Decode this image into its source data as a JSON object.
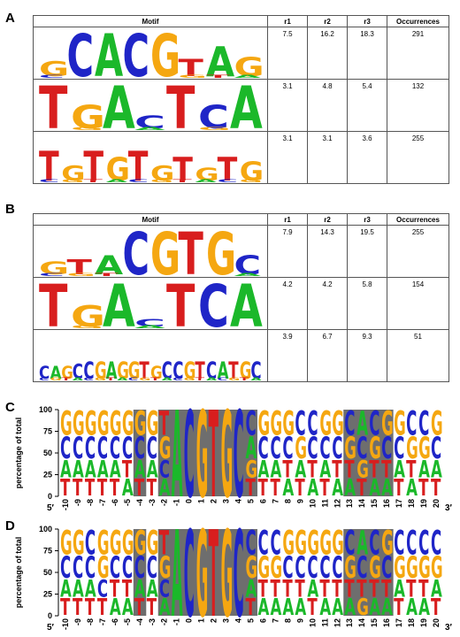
{
  "colors": {
    "A": "#1bb82a",
    "C": "#1f25c7",
    "G": "#f5a711",
    "T": "#d81e1e",
    "box": "#6e6e6e"
  },
  "panels": [
    {
      "label": "A"
    },
    {
      "label": "B"
    },
    {
      "label": "C"
    },
    {
      "label": "D"
    }
  ],
  "table_headers": [
    "Motif",
    "r1",
    "r2",
    "r3",
    "Occurrences"
  ],
  "tableA": {
    "rows": [
      {
        "r1": "7.5",
        "r2": "16.2",
        "r3": "18.3",
        "occ": "291",
        "logo": [
          [
            "G",
            0.35
          ],
          [
            "C",
            1
          ],
          [
            "A",
            1
          ],
          [
            "C",
            1
          ],
          [
            "G",
            1
          ],
          [
            "T",
            0.4
          ],
          [
            "A",
            0.7
          ],
          [
            "G",
            0.45
          ]
        ]
      },
      {
        "r1": "3.1",
        "r2": "4.8",
        "r3": "5.4",
        "occ": "132",
        "logo": [
          [
            "T",
            1
          ],
          [
            "G",
            0.55
          ],
          [
            "A",
            1
          ],
          [
            "C",
            0.3
          ],
          [
            "T",
            1
          ],
          [
            "C",
            0.55
          ],
          [
            "A",
            1
          ]
        ]
      },
      {
        "r1": "3.1",
        "r2": "3.1",
        "r3": "3.6",
        "occ": "255",
        "logo": [
          [
            "T",
            0.7
          ],
          [
            "G",
            0.35
          ],
          [
            "T",
            0.7
          ],
          [
            "G",
            0.55
          ],
          [
            "T",
            0.7
          ],
          [
            "G",
            0.35
          ],
          [
            "T",
            0.55
          ],
          [
            "G",
            0.3
          ],
          [
            "T",
            0.55
          ],
          [
            "G",
            0.45
          ]
        ]
      }
    ]
  },
  "tableB": {
    "rows": [
      {
        "r1": "7.9",
        "r2": "14.3",
        "r3": "19.5",
        "occ": "255",
        "logo": [
          [
            "G",
            0.3
          ],
          [
            "T",
            0.35
          ],
          [
            "A",
            0.45
          ],
          [
            "C",
            1
          ],
          [
            "G",
            1
          ],
          [
            "T",
            1
          ],
          [
            "G",
            1
          ],
          [
            "C",
            0.45
          ]
        ]
      },
      {
        "r1": "4.2",
        "r2": "4.2",
        "r3": "5.8",
        "occ": "154",
        "logo": [
          [
            "T",
            1
          ],
          [
            "G",
            0.5
          ],
          [
            "A",
            1
          ],
          [
            "C",
            0.18
          ],
          [
            "T",
            1
          ],
          [
            "C",
            1
          ],
          [
            "A",
            1
          ]
        ]
      },
      {
        "r1": "3.9",
        "r2": "6.7",
        "r3": "9.3",
        "occ": "51",
        "logo": [
          [
            "C",
            0.3
          ],
          [
            "A",
            0.3
          ],
          [
            "G",
            0.3
          ],
          [
            "C",
            0.35
          ],
          [
            "C",
            0.4
          ],
          [
            "G",
            0.4
          ],
          [
            "A",
            0.4
          ],
          [
            "G",
            0.4
          ],
          [
            "G",
            0.4
          ],
          [
            "T",
            0.4
          ],
          [
            "G",
            0.3
          ],
          [
            "C",
            0.4
          ],
          [
            "C",
            0.4
          ],
          [
            "G",
            0.4
          ],
          [
            "T",
            0.4
          ],
          [
            "C",
            0.4
          ],
          [
            "A",
            0.4
          ],
          [
            "T",
            0.4
          ],
          [
            "G",
            0.4
          ],
          [
            "C",
            0.4
          ]
        ]
      }
    ]
  },
  "chart_data": [
    {
      "type": "sequence-logo",
      "ylabel": "percentage of total",
      "yticks": [
        "0",
        "25",
        "50",
        "75",
        "100"
      ],
      "ylim": [
        0,
        100
      ],
      "x": [
        "-10",
        "-9",
        "-8",
        "-7",
        "-6",
        "-5",
        "-4",
        "-3",
        "-2",
        "-1",
        "0",
        "1",
        "2",
        "3",
        "4",
        "5",
        "6",
        "7",
        "8",
        "9",
        "10",
        "11",
        "12",
        "13",
        "14",
        "15",
        "16",
        "17",
        "18",
        "19",
        "20"
      ],
      "strand_left": "5′",
      "strand_right": "3′",
      "highlighted": [
        "-4",
        "-2",
        "-1",
        "0",
        "1",
        "2",
        "3",
        "4",
        "5",
        "13",
        "14",
        "15",
        "16"
      ],
      "columns": [
        [
          "GCAT"
        ],
        [
          "GCAT"
        ],
        [
          "GCAT"
        ],
        [
          "GCAT"
        ],
        [
          "GCAT"
        ],
        [
          "GCTA"
        ],
        [
          "GCAT"
        ],
        [
          "GCAT"
        ],
        [
          "TGCA"
        ],
        [
          "ACGT"
        ],
        [
          "CAGT"
        ],
        [
          "GCTA"
        ],
        [
          "TACG"
        ],
        [
          "GTCA"
        ],
        [
          "CTGA"
        ],
        [
          "CAGT"
        ],
        [
          "GCAT"
        ],
        [
          "GCAT"
        ],
        [
          "GCTA"
        ],
        [
          "CGAT"
        ],
        [
          "CCTA"
        ],
        [
          "GCAT"
        ],
        [
          "GCTA"
        ],
        [
          "CGTA"
        ],
        [
          "ACGT"
        ],
        [
          "CGTA"
        ],
        [
          "GCTA"
        ],
        [
          "GCAT"
        ],
        [
          "CGTA"
        ],
        [
          "CGAT"
        ],
        [
          "GCAT"
        ]
      ]
    },
    {
      "type": "sequence-logo",
      "ylabel": "percentage of total",
      "yticks": [
        "0",
        "25",
        "50",
        "75",
        "100"
      ],
      "ylim": [
        0,
        100
      ],
      "x": [
        "-10",
        "-9",
        "-8",
        "-7",
        "-6",
        "-5",
        "-4",
        "-3",
        "-2",
        "-1",
        "0",
        "1",
        "2",
        "3",
        "4",
        "5",
        "6",
        "7",
        "8",
        "9",
        "10",
        "11",
        "12",
        "13",
        "14",
        "15",
        "16",
        "17",
        "18",
        "19",
        "20"
      ],
      "strand_left": "5′",
      "strand_right": "3′",
      "highlighted": [
        "-4",
        "-2",
        "-1",
        "0",
        "1",
        "2",
        "3",
        "4",
        "5",
        "13",
        "14",
        "15",
        "16"
      ],
      "columns": [
        [
          "GCAT"
        ],
        [
          "GCAT"
        ],
        [
          "CCAT"
        ],
        [
          "GGCT"
        ],
        [
          "GCTA"
        ],
        [
          "GCTA"
        ],
        [
          "GCAT"
        ],
        [
          "GCAT"
        ],
        [
          "TGCA"
        ],
        [
          "ACGT"
        ],
        [
          "CAGT"
        ],
        [
          "GCTA"
        ],
        [
          "TACG"
        ],
        [
          "GTCA"
        ],
        [
          "CTGA"
        ],
        [
          "CGAT"
        ],
        [
          "CGTA"
        ],
        [
          "CGTA"
        ],
        [
          "GCTA"
        ],
        [
          "GCTA"
        ],
        [
          "GCAT"
        ],
        [
          "GCTA"
        ],
        [
          "GCTA"
        ],
        [
          "CGTA"
        ],
        [
          "ACTG"
        ],
        [
          "CGTA"
        ],
        [
          "GCTA"
        ],
        [
          "CGAT"
        ],
        [
          "CGTA"
        ],
        [
          "CGTA"
        ],
        [
          "CGAT"
        ]
      ]
    }
  ]
}
